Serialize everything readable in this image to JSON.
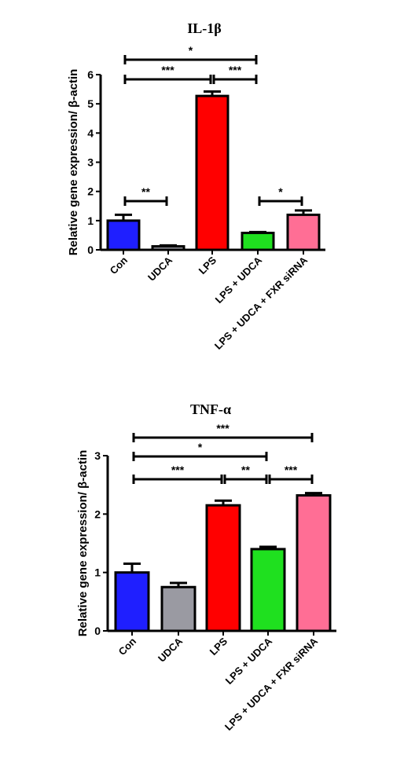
{
  "chart_data": [
    {
      "type": "bar",
      "title": "IL-1β",
      "ylabel": "Relative gene expression/ β-actin",
      "ylim": [
        0,
        6
      ],
      "yticks": [
        "0",
        "1",
        "2",
        "3",
        "4",
        "5",
        "6"
      ],
      "categories": [
        "Con",
        "UDCA",
        "LPS",
        "LPS + UDCA",
        "LPS + UDCA + FXR siRNA"
      ],
      "values": [
        1.0,
        0.12,
        5.27,
        0.58,
        1.2
      ],
      "errors": [
        0.2,
        0.03,
        0.15,
        0.03,
        0.15
      ],
      "colors": [
        "#1f1fff",
        "#9a9aa2",
        "#ff0000",
        "#1fe01f",
        "#ff6e95"
      ],
      "significance": [
        {
          "from": 0,
          "to": 3,
          "label": "*"
        },
        {
          "from": 0,
          "to": 2,
          "label": "***"
        },
        {
          "from": 2,
          "to": 3,
          "label": "***"
        },
        {
          "from": 0,
          "to": 1,
          "label": "**"
        },
        {
          "from": 3,
          "to": 4,
          "label": "*"
        }
      ]
    },
    {
      "type": "bar",
      "title": "TNF-α",
      "ylabel": "Relative gene expression/ β-actin",
      "ylim": [
        0,
        3
      ],
      "yticks": [
        "0",
        "1",
        "2",
        "3"
      ],
      "categories": [
        "Con",
        "UDCA",
        "LPS",
        "LPS + UDCA",
        "LPS + UDCA + FXR siRNA"
      ],
      "values": [
        1.0,
        0.75,
        2.15,
        1.4,
        2.32
      ],
      "errors": [
        0.15,
        0.07,
        0.08,
        0.04,
        0.04
      ],
      "colors": [
        "#1f1fff",
        "#9a9aa2",
        "#ff0000",
        "#1fe01f",
        "#ff6e95"
      ],
      "significance": [
        {
          "from": 0,
          "to": 4,
          "label": "***"
        },
        {
          "from": 0,
          "to": 3,
          "label": "*"
        },
        {
          "from": 0,
          "to": 2,
          "label": "***"
        },
        {
          "from": 2,
          "to": 3,
          "label": "**"
        },
        {
          "from": 3,
          "to": 4,
          "label": "***"
        }
      ]
    }
  ]
}
